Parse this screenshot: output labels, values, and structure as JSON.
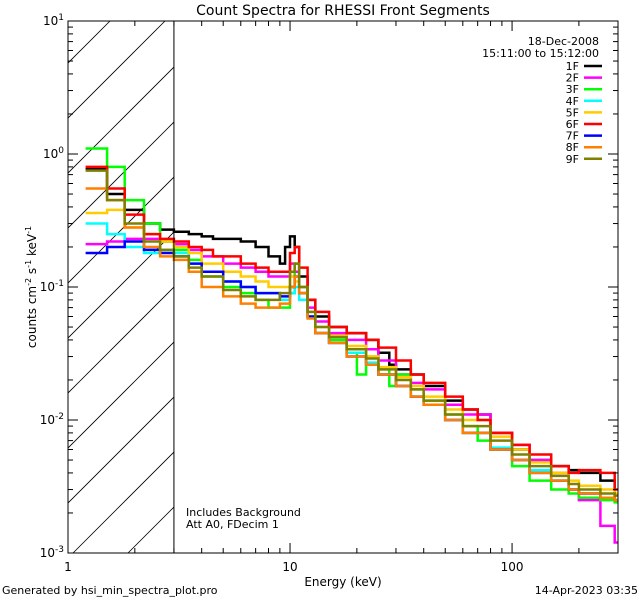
{
  "chart_data": {
    "type": "line",
    "title": "Count Spectra for RHESSI Front Segments",
    "xlabel": "Energy (keV)",
    "ylabel": "counts cm^-2 s^-1 keV^-1",
    "xscale": "log",
    "yscale": "log",
    "xlim": [
      1,
      300
    ],
    "ylim": [
      0.001,
      10
    ],
    "x_ticks": [
      {
        "value": 1,
        "label": "1"
      },
      {
        "value": 10,
        "label": "10"
      },
      {
        "value": 100,
        "label": "100"
      }
    ],
    "y_ticks": [
      {
        "value": 0.001,
        "label": "10^-3"
      },
      {
        "value": 0.01,
        "label": "10^-2"
      },
      {
        "value": 0.1,
        "label": "10^-1"
      },
      {
        "value": 1,
        "label": "10^0"
      },
      {
        "value": 10,
        "label": "10^1"
      }
    ],
    "excluded_region": {
      "x_from": 1,
      "x_to": 3
    },
    "date": "18-Dec-2008",
    "time_range": "15:11:00 to 15:12:00",
    "notes": [
      "Includes Background",
      "Att A0, FDecim 1"
    ],
    "series": [
      {
        "name": "1F",
        "color": "#000000",
        "x": [
          1.2,
          1.5,
          1.8,
          2.2,
          2.6,
          3.0,
          3.5,
          4.0,
          4.5,
          5.0,
          6.0,
          7.0,
          8.0,
          9.0,
          9.5,
          10.0,
          10.5,
          11.0,
          12.0,
          13.0,
          15.0,
          18.0,
          22.0,
          25.0,
          28.0,
          30.0,
          35.0,
          40.0,
          50.0,
          60.0,
          70.0,
          80.0,
          100.0,
          120.0,
          150.0,
          180.0,
          200.0,
          250.0,
          290.0
        ],
        "y": [
          0.77,
          0.5,
          0.38,
          0.3,
          0.27,
          0.26,
          0.25,
          0.24,
          0.23,
          0.23,
          0.22,
          0.2,
          0.17,
          0.15,
          0.2,
          0.24,
          0.2,
          0.12,
          0.08,
          0.06,
          0.05,
          0.045,
          0.04,
          0.032,
          0.026,
          0.024,
          0.022,
          0.018,
          0.014,
          0.012,
          0.011,
          0.008,
          0.006,
          0.005,
          0.0045,
          0.0042,
          0.004,
          0.0035,
          0.0025
        ]
      },
      {
        "name": "2F",
        "color": "#ff00ff",
        "x": [
          1.2,
          1.5,
          1.8,
          2.2,
          2.6,
          3.0,
          3.5,
          4.0,
          5.0,
          6.0,
          7.0,
          8.0,
          9.0,
          10.0,
          10.5,
          11.0,
          12.0,
          13.0,
          15.0,
          18.0,
          22.0,
          25.0,
          30.0,
          35.0,
          40.0,
          50.0,
          60.0,
          80.0,
          100.0,
          120.0,
          150.0,
          180.0,
          200.0,
          250.0,
          290.0
        ],
        "y": [
          0.21,
          0.22,
          0.23,
          0.23,
          0.22,
          0.21,
          0.19,
          0.17,
          0.15,
          0.14,
          0.13,
          0.12,
          0.12,
          0.15,
          0.13,
          0.1,
          0.07,
          0.055,
          0.045,
          0.04,
          0.034,
          0.028,
          0.022,
          0.019,
          0.017,
          0.013,
          0.011,
          0.008,
          0.0065,
          0.005,
          0.004,
          0.003,
          0.0025,
          0.0016,
          0.0012
        ]
      },
      {
        "name": "3F",
        "color": "#00ff00",
        "x": [
          1.2,
          1.5,
          1.8,
          2.2,
          2.6,
          3.0,
          3.5,
          4.0,
          5.0,
          6.0,
          7.0,
          8.0,
          9.0,
          10.0,
          10.5,
          11.0,
          12.0,
          13.0,
          15.0,
          18.0,
          20.0,
          22.0,
          25.0,
          28.0,
          30.0,
          35.0,
          40.0,
          50.0,
          60.0,
          70.0,
          80.0,
          100.0,
          120.0,
          150.0,
          180.0,
          200.0,
          250.0,
          290.0
        ],
        "y": [
          1.1,
          0.8,
          0.45,
          0.3,
          0.22,
          0.19,
          0.16,
          0.12,
          0.1,
          0.09,
          0.08,
          0.07,
          0.07,
          0.09,
          0.15,
          0.1,
          0.06,
          0.045,
          0.04,
          0.032,
          0.022,
          0.03,
          0.024,
          0.018,
          0.022,
          0.017,
          0.014,
          0.011,
          0.009,
          0.007,
          0.006,
          0.0045,
          0.0035,
          0.003,
          0.0028,
          0.0026,
          0.0025,
          0.0024
        ]
      },
      {
        "name": "4F",
        "color": "#00ffff",
        "x": [
          1.2,
          1.5,
          1.8,
          2.2,
          2.6,
          3.0,
          3.5,
          4.0,
          5.0,
          6.0,
          7.0,
          8.0,
          9.0,
          10.0,
          10.5,
          11.0,
          12.0,
          13.0,
          15.0,
          18.0,
          22.0,
          25.0,
          30.0,
          35.0,
          40.0,
          50.0,
          60.0,
          80.0,
          100.0,
          120.0,
          150.0,
          180.0,
          200.0,
          250.0,
          290.0
        ],
        "y": [
          0.3,
          0.25,
          0.2,
          0.18,
          0.19,
          0.18,
          0.15,
          0.13,
          0.11,
          0.1,
          0.09,
          0.09,
          0.08,
          0.09,
          0.1,
          0.08,
          0.06,
          0.045,
          0.038,
          0.032,
          0.027,
          0.022,
          0.018,
          0.015,
          0.013,
          0.01,
          0.008,
          0.0062,
          0.005,
          0.0042,
          0.0035,
          0.003,
          0.0028,
          0.0026,
          0.0025
        ]
      },
      {
        "name": "5F",
        "color": "#ffcc00",
        "x": [
          1.2,
          1.5,
          1.8,
          2.2,
          2.6,
          3.0,
          3.5,
          4.0,
          5.0,
          6.0,
          7.0,
          8.0,
          9.0,
          10.0,
          10.5,
          11.0,
          12.0,
          13.0,
          15.0,
          18.0,
          22.0,
          25.0,
          30.0,
          35.0,
          40.0,
          50.0,
          60.0,
          80.0,
          100.0,
          120.0,
          150.0,
          180.0,
          200.0,
          250.0,
          290.0
        ],
        "y": [
          0.36,
          0.38,
          0.28,
          0.25,
          0.22,
          0.2,
          0.18,
          0.15,
          0.13,
          0.12,
          0.11,
          0.1,
          0.1,
          0.12,
          0.11,
          0.09,
          0.065,
          0.05,
          0.043,
          0.036,
          0.03,
          0.025,
          0.021,
          0.018,
          0.015,
          0.012,
          0.01,
          0.0075,
          0.006,
          0.0048,
          0.004,
          0.0035,
          0.0032,
          0.003,
          0.0028
        ]
      },
      {
        "name": "6F",
        "color": "#ff0000",
        "x": [
          1.2,
          1.5,
          1.8,
          2.2,
          2.6,
          3.0,
          3.5,
          4.0,
          4.5,
          5.0,
          6.0,
          7.0,
          8.0,
          9.0,
          10.0,
          10.5,
          11.0,
          12.0,
          13.0,
          15.0,
          18.0,
          22.0,
          25.0,
          30.0,
          35.0,
          40.0,
          50.0,
          60.0,
          70.0,
          80.0,
          100.0,
          120.0,
          150.0,
          180.0,
          200.0,
          250.0,
          290.0
        ],
        "y": [
          0.8,
          0.55,
          0.35,
          0.25,
          0.23,
          0.22,
          0.2,
          0.19,
          0.17,
          0.17,
          0.15,
          0.14,
          0.13,
          0.13,
          0.18,
          0.2,
          0.14,
          0.08,
          0.065,
          0.05,
          0.045,
          0.04,
          0.035,
          0.028,
          0.022,
          0.019,
          0.015,
          0.012,
          0.01,
          0.008,
          0.0065,
          0.0055,
          0.0045,
          0.004,
          0.0042,
          0.004,
          0.003
        ]
      },
      {
        "name": "7F",
        "color": "#0000ff",
        "x": [
          1.2,
          1.5,
          1.8,
          2.2,
          2.6,
          3.0,
          3.5,
          4.0,
          5.0,
          6.0,
          7.0,
          8.0,
          9.0,
          10.0,
          10.5,
          11.0,
          12.0,
          13.0,
          15.0,
          18.0,
          22.0,
          25.0,
          30.0,
          35.0,
          40.0,
          50.0,
          60.0,
          80.0,
          100.0,
          120.0,
          150.0,
          180.0,
          200.0,
          250.0,
          290.0
        ],
        "y": [
          0.18,
          0.2,
          0.22,
          0.19,
          0.18,
          0.17,
          0.15,
          0.13,
          0.11,
          0.1,
          0.09,
          0.09,
          0.085,
          0.1,
          0.12,
          0.09,
          0.06,
          0.045,
          0.038,
          0.03,
          0.026,
          0.022,
          0.018,
          0.015,
          0.013,
          0.01,
          0.008,
          0.006,
          0.005,
          0.004,
          0.0035,
          0.003,
          0.0028,
          0.0026,
          0.0025
        ]
      },
      {
        "name": "8F",
        "color": "#ff8000",
        "x": [
          1.2,
          1.5,
          1.8,
          2.2,
          2.6,
          3.0,
          3.5,
          4.0,
          5.0,
          6.0,
          7.0,
          8.0,
          9.0,
          10.0,
          10.5,
          11.0,
          12.0,
          13.0,
          15.0,
          18.0,
          22.0,
          25.0,
          30.0,
          35.0,
          40.0,
          50.0,
          60.0,
          80.0,
          100.0,
          120.0,
          150.0,
          180.0,
          200.0,
          250.0,
          290.0
        ],
        "y": [
          0.55,
          0.45,
          0.28,
          0.2,
          0.17,
          0.16,
          0.13,
          0.1,
          0.085,
          0.075,
          0.07,
          0.07,
          0.075,
          0.1,
          0.12,
          0.09,
          0.058,
          0.045,
          0.038,
          0.03,
          0.026,
          0.022,
          0.018,
          0.015,
          0.013,
          0.01,
          0.008,
          0.006,
          0.005,
          0.004,
          0.0035,
          0.003,
          0.0028,
          0.0026,
          0.0025
        ]
      },
      {
        "name": "9F",
        "color": "#808000",
        "x": [
          1.2,
          1.5,
          1.8,
          2.2,
          2.6,
          3.0,
          3.5,
          4.0,
          5.0,
          6.0,
          7.0,
          8.0,
          9.0,
          10.0,
          10.5,
          11.0,
          12.0,
          13.0,
          15.0,
          18.0,
          22.0,
          25.0,
          30.0,
          35.0,
          40.0,
          50.0,
          60.0,
          80.0,
          100.0,
          120.0,
          150.0,
          180.0,
          200.0,
          250.0,
          290.0
        ],
        "y": [
          0.75,
          0.45,
          0.3,
          0.22,
          0.19,
          0.17,
          0.14,
          0.12,
          0.095,
          0.085,
          0.08,
          0.08,
          0.09,
          0.13,
          0.15,
          0.1,
          0.065,
          0.05,
          0.042,
          0.034,
          0.029,
          0.024,
          0.02,
          0.017,
          0.014,
          0.011,
          0.009,
          0.007,
          0.0055,
          0.0045,
          0.0038,
          0.0033,
          0.003,
          0.0028,
          0.0027
        ]
      }
    ]
  },
  "footer": {
    "generated_by": "Generated by hsi_min_spectra_plot.pro",
    "timestamp": "14-Apr-2023 03:35"
  }
}
